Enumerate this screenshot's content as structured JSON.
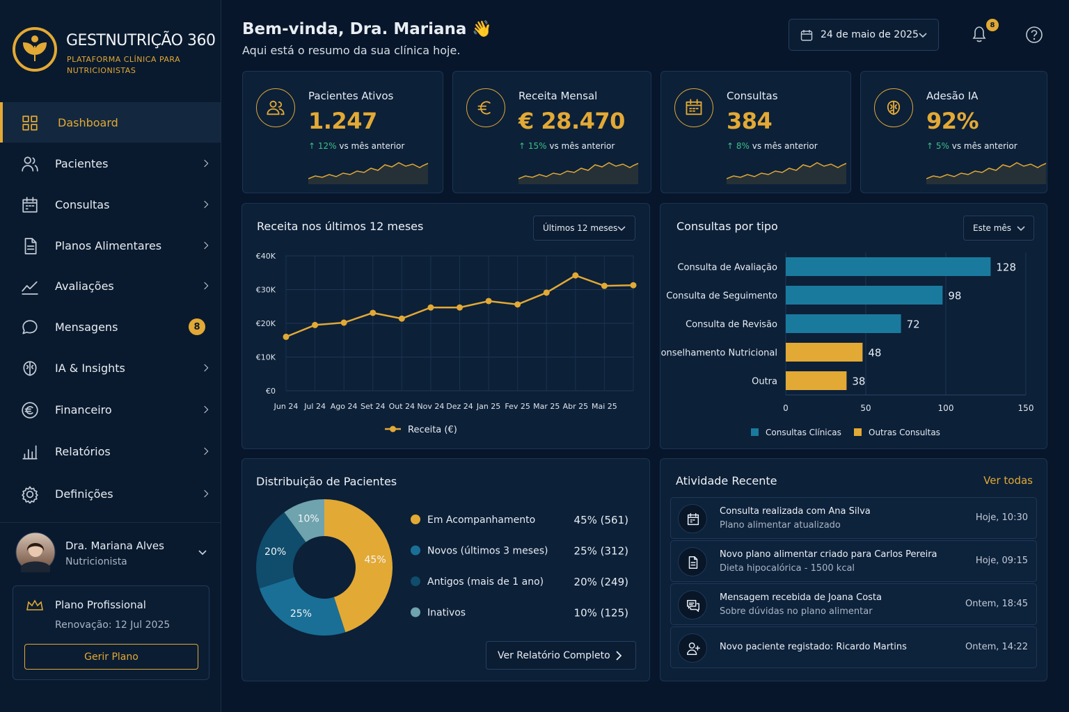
{
  "sidebar": {
    "brand": "GESTNUTRIÇÃO 360",
    "tagline": "PLATAFORMA CLÍNICA PARA NUTRICIONISTAS",
    "nav": [
      {
        "label": "Dashboard",
        "active": true
      },
      {
        "label": "Pacientes"
      },
      {
        "label": "Consultas"
      },
      {
        "label": "Planos Alimentares"
      },
      {
        "label": "Avaliações"
      },
      {
        "label": "Mensagens",
        "badge": 8
      },
      {
        "label": "IA & Insights"
      },
      {
        "label": "Financeiro"
      },
      {
        "label": "Relatórios"
      },
      {
        "label": "Definições"
      }
    ],
    "user": {
      "name": "Dra. Mariana Alves",
      "role": "Nutricionista"
    },
    "plan": {
      "name": "Plano Profissional",
      "renewal": "Renovação: 12 Jul 2025",
      "button": "Gerir Plano"
    }
  },
  "header": {
    "greeting": "Bem-vinda, Dra. Mariana 👋",
    "subtitle": "Aqui está o resumo da sua clínica hoje.",
    "date": "24 de maio de 2025",
    "notifications": 8
  },
  "kpis": [
    {
      "label": "Pacientes Ativos",
      "value": "1.247",
      "change": "12%",
      "change_note": "vs mês anterior"
    },
    {
      "label": "Receita Mensal",
      "value": "€ 28.470",
      "change": "15%",
      "change_note": "vs mês anterior"
    },
    {
      "label": "Consultas",
      "value": "384",
      "change": "8%",
      "change_note": "vs mês anterior"
    },
    {
      "label": "Adesão IA",
      "value": "92%",
      "change": "5%",
      "change_note": "vs mês anterior"
    }
  ],
  "chart_data": [
    {
      "type": "line",
      "title": "Receita nos últimos 12 meses",
      "period": "Últimos 12 meses",
      "categories": [
        "Jun 24",
        "Jul 24",
        "Ago 24",
        "Set 24",
        "Out 24",
        "Nov 24",
        "Dez 24",
        "Jan 25",
        "Fev 25",
        "Mar 25",
        "Abr 25",
        "Mai 25",
        null
      ],
      "series": [
        {
          "name": "Receita (€)",
          "color": "#e3a935",
          "values": [
            16000,
            19500,
            20200,
            23100,
            21400,
            24700,
            24700,
            26600,
            25600,
            29100,
            34200,
            31100,
            31300
          ]
        }
      ],
      "ylim": [
        0,
        40000
      ],
      "yticks": [
        {
          "value": 0,
          "label": "€0"
        },
        {
          "value": 10000,
          "label": "€10K"
        },
        {
          "value": 20000,
          "label": "€20K"
        },
        {
          "value": 30000,
          "label": "€30K"
        },
        {
          "value": 40000,
          "label": "€40K"
        }
      ],
      "grid": true
    },
    {
      "type": "bar",
      "orientation": "horizontal",
      "title": "Consultas por tipo",
      "period": "Este mês",
      "categories": [
        "Consulta de Avaliação",
        "Consulta de Seguimento",
        "Consulta de Revisão",
        "Aconselhamento Nutricional",
        "Outra"
      ],
      "series": [
        {
          "name": "Consultas Clínicas",
          "color": "#1a7a9e",
          "values": [
            128,
            98,
            72,
            null,
            null
          ]
        },
        {
          "name": "Outras Consultas",
          "color": "#e3a935",
          "values": [
            null,
            null,
            null,
            48,
            38
          ]
        }
      ],
      "xlim": [
        0,
        150
      ],
      "xticks": [
        0,
        50,
        100,
        150
      ],
      "grid": true
    },
    {
      "type": "pie",
      "title": "Distribuição de Pacientes",
      "categories": [
        "Em Acompanhamento",
        "Novos (últimos 3 meses)",
        "Antigos (mais de 1 ano)",
        "Inativos"
      ],
      "values": [
        45,
        25,
        20,
        10
      ],
      "value_labels": [
        "45%",
        "25%",
        "20%",
        "10%"
      ],
      "legend_labels": [
        "45% (561)",
        "25% (312)",
        "20% (249)",
        "10% (125)"
      ],
      "colors": [
        "#e3a935",
        "#1a6f96",
        "#104c6b",
        "#6fa3ad"
      ],
      "button": "Ver Relatório Completo"
    }
  ],
  "activity": {
    "title": "Atividade Recente",
    "link": "Ver todas",
    "items": [
      {
        "title": "Consulta realizada com Ana Silva",
        "detail": "Plano alimentar atualizado",
        "time": "Hoje, 10:30"
      },
      {
        "title": "Novo plano alimentar criado para Carlos Pereira",
        "detail": "Dieta hipocalórica - 1500 kcal",
        "time": "Hoje, 09:15"
      },
      {
        "title": "Mensagem recebida de Joana Costa",
        "detail": "Sobre dúvidas no plano alimentar",
        "time": "Ontem, 18:45"
      },
      {
        "title": "Novo paciente registado: Ricardo Martins",
        "time": "Ontem, 14:22"
      }
    ]
  }
}
